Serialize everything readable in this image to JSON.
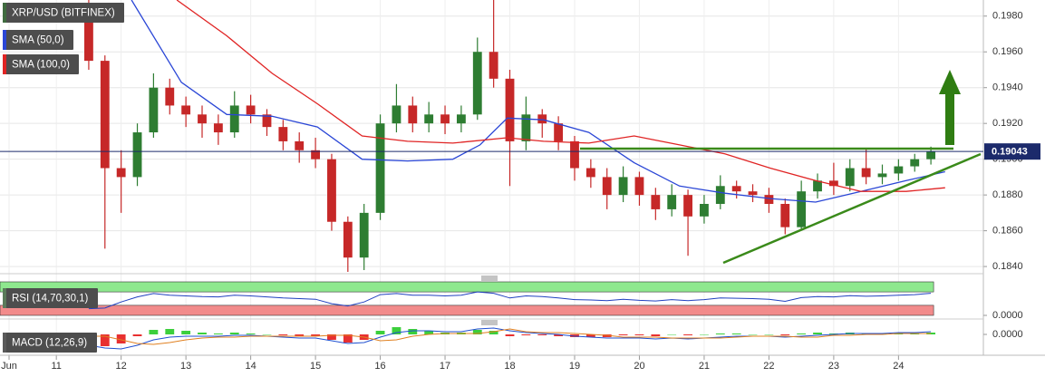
{
  "chart_data": [
    {
      "type": "candlestick",
      "title": "XRP/USD (BITFINEX)",
      "up_color": "#2e7d32",
      "down_color": "#c62828",
      "legend_color": "#3f6b3f",
      "x": [
        11.5,
        11.75,
        12,
        12.25,
        12.5,
        12.75,
        13,
        13.25,
        13.5,
        13.75,
        14,
        14.25,
        14.5,
        14.75,
        15,
        15.25,
        15.5,
        15.75,
        16,
        16.25,
        16.5,
        16.75,
        17,
        17.25,
        17.5,
        17.75,
        18,
        18.25,
        18.5,
        18.75,
        19,
        19.25,
        19.5,
        19.75,
        20,
        20.25,
        20.5,
        20.75,
        21,
        21.25,
        21.5,
        21.75,
        22,
        22.25,
        22.5,
        22.75,
        23,
        23.25,
        23.5,
        23.75,
        24,
        24.25,
        24.5
      ],
      "open": [
        0.1985,
        0.1955,
        0.1895,
        0.189,
        0.1915,
        0.194,
        0.193,
        0.1925,
        0.192,
        0.1915,
        0.193,
        0.1925,
        0.1918,
        0.191,
        0.1905,
        0.19,
        0.1865,
        0.1845,
        0.187,
        0.192,
        0.193,
        0.192,
        0.1925,
        0.192,
        0.1925,
        0.196,
        0.1945,
        0.191,
        0.1925,
        0.192,
        0.191,
        0.1895,
        0.189,
        0.188,
        0.189,
        0.188,
        0.1872,
        0.188,
        0.1868,
        0.1875,
        0.1885,
        0.1882,
        0.188,
        0.1875,
        0.1862,
        0.1882,
        0.1888,
        0.1885,
        0.1895,
        0.189,
        0.1892,
        0.1896,
        0.19
      ],
      "high": [
        0.1989,
        0.1958,
        0.1905,
        0.192,
        0.1948,
        0.1945,
        0.1935,
        0.193,
        0.1925,
        0.1938,
        0.1936,
        0.1928,
        0.1922,
        0.1915,
        0.1912,
        0.1903,
        0.1868,
        0.1875,
        0.1925,
        0.1942,
        0.1935,
        0.1932,
        0.193,
        0.193,
        0.1968,
        0.1989,
        0.195,
        0.1935,
        0.1928,
        0.1924,
        0.1913,
        0.19,
        0.1895,
        0.1896,
        0.1893,
        0.1884,
        0.1886,
        0.1883,
        0.188,
        0.1891,
        0.1888,
        0.1886,
        0.1884,
        0.1878,
        0.1888,
        0.1892,
        0.1898,
        0.19,
        0.1906,
        0.1897,
        0.19,
        0.1903,
        0.1907
      ],
      "low": [
        0.195,
        0.185,
        0.187,
        0.1885,
        0.1912,
        0.1925,
        0.1918,
        0.1912,
        0.1908,
        0.1912,
        0.192,
        0.1913,
        0.1905,
        0.1898,
        0.1895,
        0.186,
        0.1837,
        0.1838,
        0.1866,
        0.1915,
        0.1915,
        0.1915,
        0.1914,
        0.1915,
        0.1922,
        0.194,
        0.1885,
        0.1905,
        0.1912,
        0.1905,
        0.1888,
        0.1884,
        0.1872,
        0.1876,
        0.1874,
        0.1866,
        0.1868,
        0.1846,
        0.1864,
        0.1872,
        0.1878,
        0.1876,
        0.187,
        0.1858,
        0.186,
        0.1878,
        0.188,
        0.1882,
        0.1886,
        0.1886,
        0.1888,
        0.1893,
        0.1897
      ],
      "close": [
        0.1955,
        0.1895,
        0.189,
        0.1915,
        0.194,
        0.193,
        0.1925,
        0.192,
        0.1915,
        0.193,
        0.1925,
        0.1918,
        0.191,
        0.1905,
        0.19,
        0.1865,
        0.1845,
        0.187,
        0.192,
        0.193,
        0.192,
        0.1925,
        0.192,
        0.1925,
        0.196,
        0.1945,
        0.191,
        0.1925,
        0.192,
        0.191,
        0.1895,
        0.189,
        0.188,
        0.189,
        0.188,
        0.1872,
        0.188,
        0.1868,
        0.1875,
        0.1885,
        0.1882,
        0.188,
        0.1875,
        0.1862,
        0.1882,
        0.1888,
        0.1885,
        0.1895,
        0.189,
        0.1892,
        0.1896,
        0.19,
        0.19043
      ],
      "series": [
        {
          "name": "SMA (50,0)",
          "color": "#2a46d6",
          "x": [
            12.16,
            12.93,
            13.63,
            14.33,
            15.03,
            15.72,
            16.42,
            17.12,
            17.54,
            17.96,
            18.52,
            19.22,
            19.92,
            20.62,
            21.32,
            22.02,
            22.72,
            23.42,
            24.12,
            24.72
          ],
          "values": [
            0.1989,
            0.1943,
            0.1925,
            0.1924,
            0.1918,
            0.19,
            0.1899,
            0.19,
            0.1908,
            0.1923,
            0.1922,
            0.1915,
            0.1898,
            0.1885,
            0.1881,
            0.1878,
            0.1876,
            0.1882,
            0.1888,
            0.1893
          ]
        },
        {
          "name": "SMA (100,0)",
          "color": "#e02424",
          "x": [
            12.86,
            13.63,
            14.33,
            15.03,
            15.72,
            16.42,
            17.12,
            17.96,
            18.52,
            19.22,
            19.92,
            20.62,
            21.32,
            22.02,
            22.72,
            23.42,
            24.12,
            24.72
          ],
          "values": [
            0.1989,
            0.1969,
            0.1948,
            0.1931,
            0.1913,
            0.191,
            0.1909,
            0.1912,
            0.191,
            0.1909,
            0.1913,
            0.1908,
            0.1903,
            0.1895,
            0.1888,
            0.1882,
            0.1882,
            0.1884
          ]
        }
      ],
      "last_price": 0.19043,
      "last_price_color": "#1c2a6b",
      "xlim": [
        10.13,
        25.31
      ],
      "xticks": [
        {
          "value": 10.27,
          "label": "Jun"
        },
        11,
        12,
        13,
        14,
        15,
        16,
        17,
        18,
        19,
        20,
        21,
        22,
        23,
        24
      ],
      "ylim": [
        0.1837,
        0.1989
      ],
      "yticks": [
        {
          "value": 0.184,
          "label": "0.1840"
        },
        {
          "value": 0.186,
          "label": "0.1860"
        },
        {
          "value": 0.188,
          "label": "0.1880"
        },
        {
          "value": 0.19,
          "label": "0.1900"
        },
        {
          "value": 0.192,
          "label": "0.1920"
        },
        {
          "value": 0.194,
          "label": "0.1940"
        },
        {
          "value": 0.196,
          "label": "0.1960"
        },
        {
          "value": 0.198,
          "label": "0.1980"
        }
      ],
      "grid": true
    },
    {
      "type": "rsi",
      "title": "RSI (14,70,30,1)",
      "color": "#2040c0",
      "legend_color": "#5a7a5a",
      "values": [
        20,
        22,
        40,
        55,
        65,
        60,
        58,
        56,
        55,
        60,
        58,
        55,
        52,
        50,
        48,
        35,
        28,
        40,
        62,
        65,
        60,
        60,
        58,
        60,
        70,
        66,
        52,
        58,
        56,
        52,
        47,
        46,
        44,
        48,
        45,
        43,
        47,
        44,
        47,
        52,
        51,
        50,
        48,
        42,
        53,
        56,
        55,
        59,
        57,
        58,
        60,
        62,
        66
      ],
      "upper_band": 70,
      "lower_band": 30,
      "upper_color": "#8ee88e",
      "lower_color": "#f28b8b",
      "ylim": [
        0,
        100
      ],
      "yticks": [
        {
          "value": 0,
          "label": "0.0000"
        }
      ]
    },
    {
      "type": "macd",
      "title": "MACD (12,26,9)",
      "legend_color": "#5a5a5a",
      "histogram": [
        -0.001,
        -0.0013,
        -0.001,
        -0.0002,
        0.0005,
        0.0006,
        0.0004,
        0.0002,
        0.0001,
        0.0002,
        0.0001,
        0,
        -0.0001,
        -0.0002,
        -0.0002,
        -0.0006,
        -0.0009,
        -0.0006,
        0.0004,
        0.0008,
        0.0006,
        0.0004,
        0.0002,
        0.0002,
        0.0005,
        0.0004,
        -0.0002,
        -0.0001,
        -0.0001,
        -0.0002,
        -0.0003,
        -0.0003,
        -0.0003,
        -0.0001,
        -0.0001,
        -0.0002,
        0,
        -0.0001,
        0,
        0.0001,
        0.0001,
        0,
        0,
        -0.0001,
        0.0001,
        0.0002,
        0.0001,
        0.0002,
        0.0001,
        0.0001,
        0.0001,
        0.0001,
        0.0002
      ],
      "macd": [
        -0.0012,
        -0.0015,
        -0.0016,
        -0.0012,
        -0.0006,
        -0.0003,
        -0.0002,
        -0.0002,
        -0.0002,
        -0.0001,
        -0.0001,
        -0.0002,
        -0.0003,
        -0.0004,
        -0.0004,
        -0.0007,
        -0.001,
        -0.0009,
        -0.0003,
        0.0002,
        0.0004,
        0.0004,
        0.0003,
        0.0003,
        0.0006,
        0.0007,
        0.0004,
        0.0002,
        0.0001,
        0,
        -0.0002,
        -0.0003,
        -0.0004,
        -0.0004,
        -0.0004,
        -0.0005,
        -0.0004,
        -0.0005,
        -0.0004,
        -0.0003,
        -0.0002,
        -0.0002,
        -0.0002,
        -0.0003,
        -0.0002,
        -0.0001,
        0,
        0.0001,
        0.0001,
        0.0001,
        0.0002,
        0.0002,
        0.0003
      ],
      "signal": [
        -0.0002,
        -0.0002,
        -0.0006,
        -0.001,
        -0.0011,
        -0.0009,
        -0.0006,
        -0.0004,
        -0.0003,
        -0.0003,
        -0.0002,
        -0.0002,
        -0.0002,
        -0.0002,
        -0.0002,
        -0.0001,
        -0.0001,
        -0.0003,
        -0.0007,
        -0.0006,
        -0.0002,
        0,
        0.0001,
        0.0001,
        0.0001,
        0.0003,
        0.0006,
        0.0003,
        0.0002,
        0.0002,
        0.0001,
        0,
        -0.0001,
        -0.0003,
        -0.0003,
        -0.0003,
        -0.0004,
        -0.0004,
        -0.0004,
        -0.0004,
        -0.0003,
        -0.0002,
        -0.0002,
        -0.0002,
        -0.0003,
        -0.0003,
        -0.0001,
        -0.0001,
        0,
        0,
        0.0001,
        0.0001,
        0.0001
      ],
      "macd_color": "#1f4fd0",
      "signal_color": "#e08020",
      "up_color": "#3ccf3c",
      "down_color": "#e83030",
      "ylim": [
        -0.0019,
        0.0011
      ],
      "yticks": [
        {
          "value": 0,
          "label": "0.0000"
        }
      ]
    }
  ]
}
